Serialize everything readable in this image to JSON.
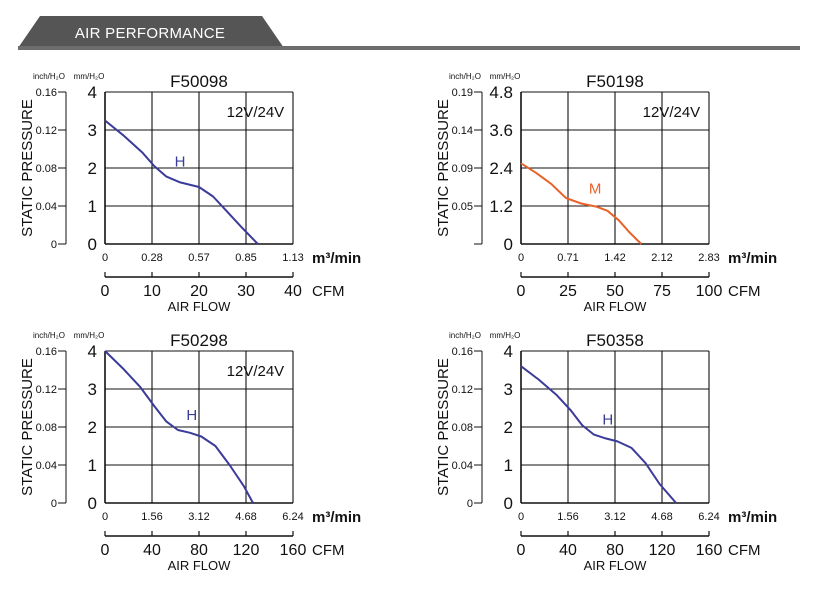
{
  "header": {
    "title": "AIR PERFORMANCE",
    "band_color": "#555555",
    "rule_color": "#6d6d6d"
  },
  "chart_data": [
    {
      "type": "line",
      "title": "F50098",
      "annotation": "12V/24V",
      "ylabel": "STATIC PRESSURE",
      "xlabel": "AIR FLOW",
      "y_unit_left": "inch/H₂O",
      "y_unit_right": "mm/H₂O",
      "x_unit_top": "m³/min",
      "x_unit_bottom": "CFM",
      "x_ticks_top": [
        "0",
        "0.28",
        "0.57",
        "0.85",
        "1.13"
      ],
      "x_ticks_bottom": [
        "0",
        "10",
        "20",
        "30",
        "40"
      ],
      "y_ticks_right": [
        "0",
        "1",
        "2",
        "3",
        "4"
      ],
      "y_ticks_left": [
        "0",
        "0.04",
        "0.08",
        "0.12",
        "0.16"
      ],
      "xlim": [
        0,
        40
      ],
      "ylim": [
        0,
        4
      ],
      "grid": true,
      "series": [
        {
          "name": "H",
          "color": "#3b3b9a",
          "x": [
            0,
            4,
            8,
            10.5,
            13,
            16,
            20,
            23,
            26,
            29,
            32.5
          ],
          "y": [
            3.25,
            2.85,
            2.4,
            2.05,
            1.78,
            1.62,
            1.5,
            1.25,
            0.85,
            0.45,
            0
          ]
        }
      ]
    },
    {
      "type": "line",
      "title": "F50198",
      "annotation": "12V/24V",
      "ylabel": "STATIC PRESSURE",
      "xlabel": "AIR FLOW",
      "y_unit_left": "inch/H₂O",
      "y_unit_right": "mm/H₂O",
      "x_unit_top": "m³/min",
      "x_unit_bottom": "CFM",
      "x_ticks_top": [
        "0",
        "0.71",
        "1.42",
        "2.12",
        "2.83"
      ],
      "x_ticks_bottom": [
        "0",
        "25",
        "50",
        "75",
        "100"
      ],
      "y_ticks_right": [
        "0",
        "1.2",
        "2.4",
        "3.6",
        "4.8"
      ],
      "y_ticks_left": [
        "",
        "0.05",
        "0.09",
        "0.14",
        "0.19"
      ],
      "xlim": [
        0,
        100
      ],
      "ylim": [
        0,
        4.8
      ],
      "grid": true,
      "series": [
        {
          "name": "M",
          "color": "#e8622a",
          "x": [
            0,
            8,
            16,
            24,
            32,
            40,
            46,
            52,
            58,
            64
          ],
          "y": [
            2.55,
            2.25,
            1.9,
            1.45,
            1.28,
            1.18,
            1.05,
            0.75,
            0.35,
            0
          ]
        }
      ]
    },
    {
      "type": "line",
      "title": "F50298",
      "annotation": "12V/24V",
      "ylabel": "STATIC PRESSURE",
      "xlabel": "AIR FLOW",
      "y_unit_left": "inch/H₂O",
      "y_unit_right": "mm/H₂O",
      "x_unit_top": "m³/min",
      "x_unit_bottom": "CFM",
      "x_ticks_top": [
        "0",
        "1.56",
        "3.12",
        "4.68",
        "6.24"
      ],
      "x_ticks_bottom": [
        "0",
        "40",
        "80",
        "120",
        "160"
      ],
      "y_ticks_right": [
        "0",
        "1",
        "2",
        "3",
        "4"
      ],
      "y_ticks_left": [
        "0",
        "0.04",
        "0.08",
        "0.12",
        "0.16"
      ],
      "xlim": [
        0,
        160
      ],
      "ylim": [
        0,
        4
      ],
      "grid": true,
      "series": [
        {
          "name": "H",
          "color": "#3b3b9a",
          "x": [
            0,
            15,
            30,
            42,
            52,
            62,
            72,
            82,
            94,
            106,
            118,
            126
          ],
          "y": [
            4,
            3.55,
            3.05,
            2.55,
            2.15,
            1.92,
            1.85,
            1.75,
            1.5,
            1.0,
            0.45,
            0
          ]
        }
      ]
    },
    {
      "type": "line",
      "title": "F50358",
      "annotation": "",
      "ylabel": "STATIC PRESSURE",
      "xlabel": "AIR FLOW",
      "y_unit_left": "inch/H₂O",
      "y_unit_right": "mm/H₂O",
      "x_unit_top": "m³/min",
      "x_unit_bottom": "CFM",
      "x_ticks_top": [
        "0",
        "1.56",
        "3.12",
        "4.68",
        "6.24"
      ],
      "x_ticks_bottom": [
        "0",
        "40",
        "80",
        "120",
        "160"
      ],
      "y_ticks_right": [
        "0",
        "1",
        "2",
        "3",
        "4"
      ],
      "y_ticks_left": [
        "0",
        "0.04",
        "0.08",
        "0.12",
        "0.16"
      ],
      "xlim": [
        0,
        160
      ],
      "ylim": [
        0,
        4
      ],
      "grid": true,
      "series": [
        {
          "name": "H",
          "color": "#3b3b9a",
          "x": [
            0,
            15,
            30,
            42,
            52,
            62,
            72,
            82,
            94,
            106,
            118,
            132
          ],
          "y": [
            3.6,
            3.25,
            2.85,
            2.45,
            2.05,
            1.8,
            1.7,
            1.62,
            1.45,
            1.05,
            0.5,
            0
          ]
        }
      ]
    }
  ]
}
